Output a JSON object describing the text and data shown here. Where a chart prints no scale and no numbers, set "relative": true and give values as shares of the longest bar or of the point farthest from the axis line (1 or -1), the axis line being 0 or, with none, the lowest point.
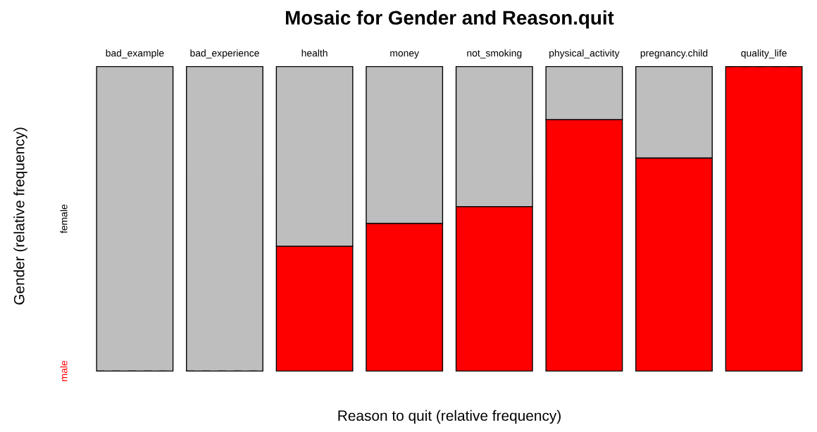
{
  "chart_data": {
    "type": "bar",
    "title": "Mosaic for Gender and Reason.quit",
    "xlabel": "Reason to quit (relative frequency)",
    "ylabel": "Gender (relative frequency)",
    "categories": [
      "bad_example",
      "bad_experience",
      "health",
      "money",
      "not_smoking",
      "physical_activity",
      "pregnancy.child",
      "quality_life"
    ],
    "stacked": true,
    "relative": true,
    "series": [
      {
        "name": "male",
        "color": "#ff0000",
        "values": [
          0,
          0,
          0.41,
          0.485,
          0.54,
          0.826,
          0.7,
          1
        ]
      },
      {
        "name": "female",
        "color": "#bebebe",
        "values": [
          1,
          1,
          0.59,
          0.515,
          0.46,
          0.174,
          0.3,
          0
        ]
      }
    ]
  }
}
